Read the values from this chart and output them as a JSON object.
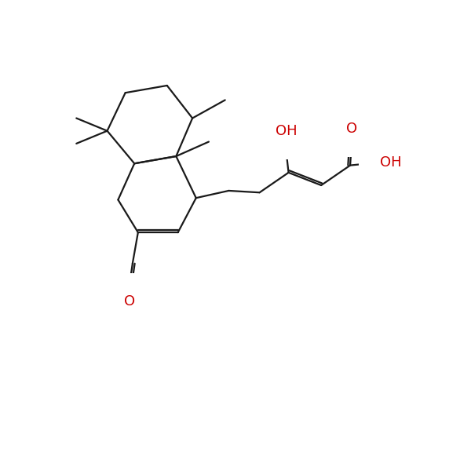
{
  "bg": "#ffffff",
  "bc": "#1a1a1a",
  "rc": "#cc0000",
  "lw": 1.6,
  "dbo": 0.06,
  "fs": 13,
  "figsize": [
    6.0,
    6.0
  ],
  "dpi": 100,
  "xlim": [
    0.0,
    10.0
  ],
  "ylim": [
    -2.5,
    7.5
  ]
}
